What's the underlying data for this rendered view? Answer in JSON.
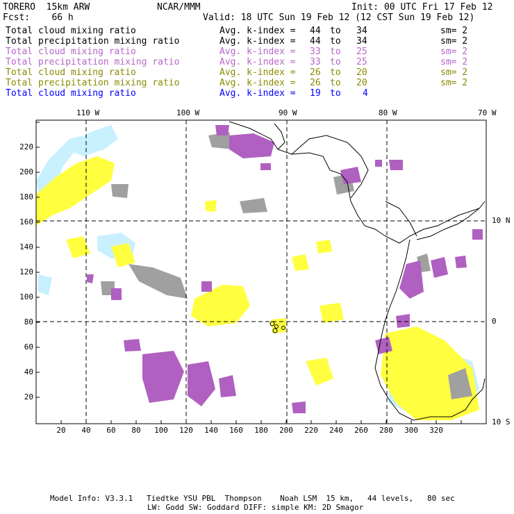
{
  "header": {
    "model": "TORERO  15km ARW",
    "org": "NCAR/MMM",
    "init": "Init: 00 UTC Fri 17 Feb 12",
    "fcst": "Fcst:    66 h",
    "valid": "Valid: 18 UTC Sun 19 Feb 12 (12 CST Sun 19 Feb 12)"
  },
  "legend": [
    {
      "field": "Total cloud mixing ratio",
      "kindex_label": "Avg. k-index =",
      "from": "44",
      "to_word": "to",
      "to": "34",
      "sm": "sm= 2",
      "color": "#000000"
    },
    {
      "field": "Total precipitation mixing ratio",
      "kindex_label": "Avg. k-index =",
      "from": "44",
      "to_word": "to",
      "to": "34",
      "sm": "sm= 2",
      "color": "#000000"
    },
    {
      "field": "Total cloud mixing ratio",
      "kindex_label": "Avg. k-index =",
      "from": "33",
      "to_word": "to",
      "to": "25",
      "sm": "sm= 2",
      "color": "#b666c8"
    },
    {
      "field": "Total precipitation mixing ratio",
      "kindex_label": "Avg. k-index =",
      "from": "33",
      "to_word": "to",
      "to": "25",
      "sm": "sm= 2",
      "color": "#b666c8"
    },
    {
      "field": "Total cloud mixing ratio",
      "kindex_label": "Avg. k-index =",
      "from": "26",
      "to_word": "to",
      "to": "20",
      "sm": "sm= 2",
      "color": "#8a8a00"
    },
    {
      "field": "Total precipitation mixing ratio",
      "kindex_label": "Avg. k-index =",
      "from": "26",
      "to_word": "to",
      "to": "20",
      "sm": "sm= 2",
      "color": "#8a8a00"
    },
    {
      "field": "Total cloud mixing ratio",
      "kindex_label": "Avg. k-index =",
      "from": "19",
      "to_word": "to",
      "to": "4",
      "sm": "",
      "color": "#0000ff"
    }
  ],
  "longitude_labels": [
    "110 W",
    "100 W",
    "90 W",
    "80 W",
    "70 W"
  ],
  "latitude_labels": [
    "10 N",
    "0",
    "10 S"
  ],
  "grid_x_labels": [
    "20",
    "40",
    "60",
    "80",
    "100",
    "120",
    "140",
    "160",
    "180",
    "200",
    "220",
    "240",
    "260",
    "280",
    "300",
    "320"
  ],
  "grid_y_labels": [
    "20",
    "40",
    "60",
    "80",
    "100",
    "120",
    "140",
    "160",
    "180",
    "200",
    "220"
  ],
  "footer": {
    "line1": "Model Info: V3.3.1   Tiedtke YSU PBL  Thompson    Noah LSM  15 km,   44 levels,   80 sec",
    "line2": "LW: Godd SW: Goddard DIFF: simple KM: 2D Smagor"
  },
  "colors": {
    "cloud_gray": "#a0a0a0",
    "cloud_purple": "#b060c0",
    "cloud_yellow": "#ffff40",
    "cloud_lightblue": "#c8f0ff"
  }
}
